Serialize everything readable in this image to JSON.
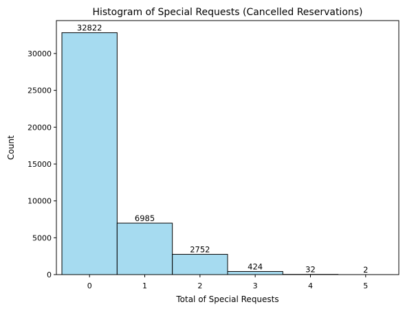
{
  "chart_data": {
    "type": "bar",
    "title": "Histogram of Special Requests (Cancelled Reservations)",
    "xlabel": "Total of Special Requests",
    "ylabel": "Count",
    "categories": [
      "0",
      "1",
      "2",
      "3",
      "4",
      "5"
    ],
    "values": [
      32822,
      6985,
      2752,
      424,
      32,
      2
    ],
    "data_labels": [
      "32822",
      "6985",
      "2752",
      "424",
      "32",
      "2"
    ],
    "xlim": [
      -0.6,
      5.6
    ],
    "ylim": [
      0,
      34464
    ],
    "y_ticks": [
      0,
      5000,
      10000,
      15000,
      20000,
      25000,
      30000
    ],
    "y_tick_labels": [
      "0",
      "5000",
      "10000",
      "15000",
      "20000",
      "25000",
      "30000"
    ],
    "grid": false,
    "bar_color": "#a6dbf0",
    "bar_edge_color": "#000000"
  }
}
